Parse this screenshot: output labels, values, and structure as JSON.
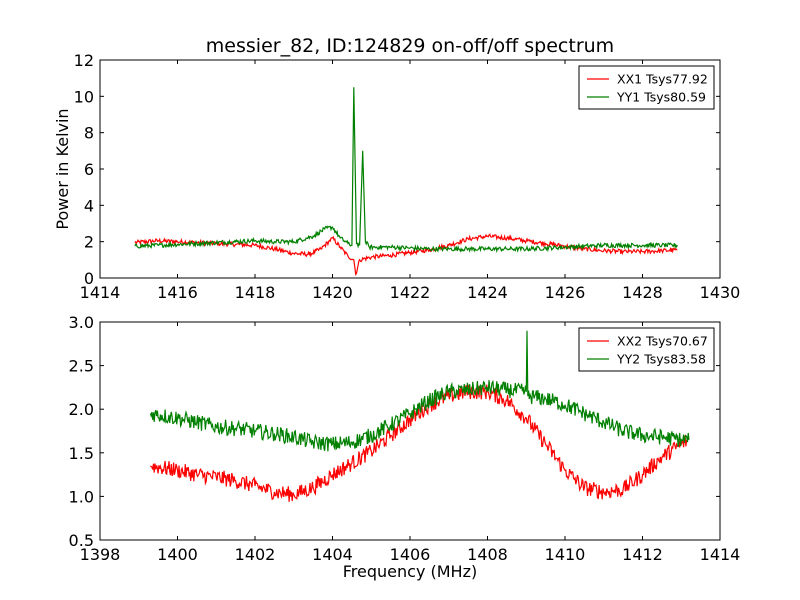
{
  "chart_data": [
    {
      "type": "line",
      "title": "messier_82, ID:124829 on-off/off spectrum",
      "xlabel": "",
      "ylabel": "Power in Kelvin",
      "xlim": [
        1414,
        1430
      ],
      "ylim": [
        0,
        12
      ],
      "x_ticks": [
        "1414",
        "1416",
        "1418",
        "1420",
        "1422",
        "1424",
        "1426",
        "1428",
        "1430"
      ],
      "y_ticks": [
        "0",
        "2",
        "4",
        "6",
        "8",
        "10",
        "12"
      ],
      "legend_position": "top-right",
      "grid": false,
      "series": [
        {
          "name": "XX1 Tsys77.92",
          "color": "#ff0000",
          "x": [
            1414.9,
            1415.5,
            1416.0,
            1416.5,
            1417.0,
            1417.5,
            1418.0,
            1418.5,
            1419.0,
            1419.4,
            1419.7,
            1419.9,
            1420.0,
            1420.2,
            1420.4,
            1420.55,
            1420.6,
            1420.7,
            1421.0,
            1421.5,
            1422.0,
            1422.5,
            1423.0,
            1423.5,
            1424.0,
            1424.5,
            1425.0,
            1425.5,
            1426.0,
            1426.5,
            1427.0,
            1427.5,
            1428.0,
            1428.5,
            1428.9
          ],
          "y": [
            1.95,
            2.05,
            2.0,
            1.95,
            1.9,
            1.85,
            1.8,
            1.6,
            1.35,
            1.3,
            1.6,
            2.0,
            2.2,
            1.7,
            1.2,
            1.0,
            0.2,
            1.0,
            1.15,
            1.25,
            1.4,
            1.55,
            1.8,
            2.15,
            2.3,
            2.2,
            2.05,
            1.9,
            1.75,
            1.6,
            1.5,
            1.45,
            1.45,
            1.5,
            1.55
          ]
        },
        {
          "name": "YY1 Tsys80.59",
          "color": "#008000",
          "x": [
            1414.9,
            1415.5,
            1416.0,
            1416.5,
            1417.0,
            1417.5,
            1418.0,
            1418.5,
            1419.0,
            1419.5,
            1419.8,
            1420.0,
            1420.2,
            1420.4,
            1420.5,
            1420.55,
            1420.62,
            1420.7,
            1420.78,
            1420.85,
            1420.95,
            1421.2,
            1421.5,
            1422.0,
            1422.5,
            1423.0,
            1423.5,
            1424.0,
            1424.5,
            1425.0,
            1425.5,
            1426.0,
            1426.5,
            1427.0,
            1427.5,
            1428.0,
            1428.5,
            1428.9
          ],
          "y": [
            1.75,
            1.8,
            1.85,
            1.9,
            1.95,
            2.0,
            2.05,
            2.0,
            2.0,
            2.3,
            2.7,
            2.8,
            2.2,
            1.9,
            1.8,
            10.5,
            1.9,
            1.8,
            7.0,
            2.0,
            1.7,
            1.7,
            1.7,
            1.65,
            1.6,
            1.6,
            1.6,
            1.6,
            1.6,
            1.6,
            1.65,
            1.7,
            1.75,
            1.8,
            1.8,
            1.8,
            1.8,
            1.8
          ]
        }
      ]
    },
    {
      "type": "line",
      "title": "",
      "xlabel": "Frequency (MHz)",
      "ylabel": "",
      "xlim": [
        1398,
        1414
      ],
      "ylim": [
        0.5,
        3.0
      ],
      "x_ticks": [
        "1398",
        "1400",
        "1402",
        "1404",
        "1406",
        "1408",
        "1410",
        "1412",
        "1414"
      ],
      "y_ticks": [
        "0.5",
        "1.0",
        "1.5",
        "2.0",
        "2.5",
        "3.0"
      ],
      "legend_position": "top-right",
      "grid": false,
      "series": [
        {
          "name": "XX2 Tsys70.67",
          "color": "#ff0000",
          "x": [
            1399.3,
            1400.0,
            1400.5,
            1401.0,
            1401.5,
            1402.0,
            1402.5,
            1403.0,
            1403.5,
            1404.0,
            1404.5,
            1405.0,
            1405.5,
            1406.0,
            1406.5,
            1407.0,
            1407.5,
            1408.0,
            1408.5,
            1409.0,
            1409.5,
            1410.0,
            1410.5,
            1411.0,
            1411.5,
            1412.0,
            1412.5,
            1413.0,
            1413.2
          ],
          "y": [
            1.35,
            1.3,
            1.25,
            1.22,
            1.18,
            1.12,
            1.05,
            1.02,
            1.1,
            1.25,
            1.38,
            1.52,
            1.7,
            1.88,
            2.05,
            2.15,
            2.2,
            2.2,
            2.1,
            1.9,
            1.6,
            1.3,
            1.1,
            1.05,
            1.08,
            1.25,
            1.45,
            1.6,
            1.65
          ]
        },
        {
          "name": "YY2 Tsys83.58",
          "color": "#008000",
          "x": [
            1399.3,
            1400.0,
            1400.5,
            1401.0,
            1401.5,
            1402.0,
            1402.5,
            1403.0,
            1403.5,
            1404.0,
            1404.5,
            1405.0,
            1405.5,
            1406.0,
            1406.5,
            1407.0,
            1407.5,
            1408.0,
            1408.5,
            1409.0,
            1409.02,
            1409.04,
            1409.5,
            1410.0,
            1410.5,
            1411.0,
            1411.5,
            1412.0,
            1412.5,
            1413.0,
            1413.2
          ],
          "y": [
            1.95,
            1.9,
            1.85,
            1.8,
            1.78,
            1.75,
            1.72,
            1.68,
            1.62,
            1.6,
            1.62,
            1.7,
            1.82,
            1.95,
            2.1,
            2.2,
            2.22,
            2.25,
            2.22,
            2.2,
            2.9,
            2.15,
            2.12,
            2.05,
            1.95,
            1.85,
            1.75,
            1.7,
            1.68,
            1.65,
            1.65
          ]
        }
      ]
    }
  ]
}
